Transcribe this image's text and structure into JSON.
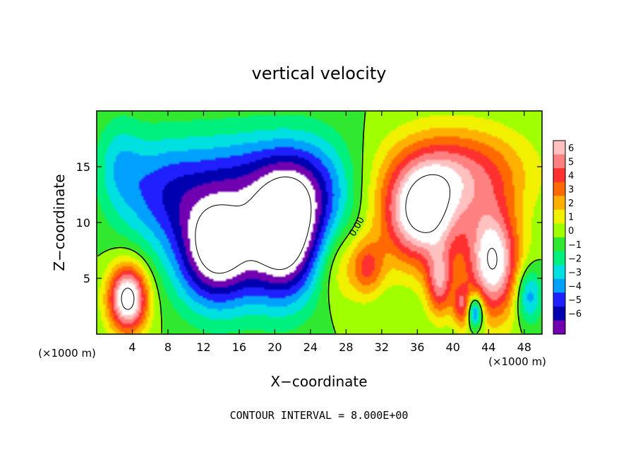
{
  "chart_data": {
    "type": "heatmap",
    "title": "vertical velocity",
    "xlabel": "X−coordinate",
    "ylabel": "Z−coordinate",
    "x_unit_label": "(×1000 m)",
    "y_unit_label": "(×1000 m)",
    "xlim": [
      0,
      50
    ],
    "ylim": [
      0,
      20
    ],
    "x_ticks": [
      4,
      8,
      12,
      16,
      20,
      24,
      28,
      32,
      36,
      40,
      44,
      48
    ],
    "x_tick_labels": [
      "4",
      "8",
      "12",
      "16",
      "20",
      "24",
      "28",
      "32",
      "36",
      "40",
      "44",
      "48"
    ],
    "y_ticks": [
      5,
      10,
      15
    ],
    "y_tick_labels": [
      "5",
      "10",
      "15"
    ],
    "colorbar": {
      "levels": [
        6,
        5,
        4,
        3,
        2,
        1,
        0,
        -1,
        -2,
        -3,
        -4,
        -5,
        -6
      ],
      "labels": [
        "6",
        "5",
        "4",
        "3",
        "2",
        "1",
        "0",
        "−1",
        "−2",
        "−3",
        "−4",
        "−5",
        "−6"
      ],
      "colors": [
        "#ffc0c0",
        "#ff8080",
        "#ff3030",
        "#ff6a00",
        "#ffb000",
        "#f0f000",
        "#a0ff00",
        "#30e830",
        "#00f080",
        "#00e0e0",
        "#00a0ff",
        "#2020ff",
        "#0000b0",
        "#7000b0"
      ]
    },
    "contour_label": "0.00",
    "footer": "CONTOUR INTERVAL = 8.000E+00",
    "features": [
      {
        "cx": 3.5,
        "cz": 3.2,
        "rx": 2.2,
        "rz": 3.0,
        "amp": 9
      },
      {
        "cx": 2.5,
        "cz": 15.5,
        "rx": 2.5,
        "rz": 4.0,
        "amp": -2
      },
      {
        "cx": 7.0,
        "cz": 12.5,
        "rx": 5.0,
        "rz": 5.0,
        "amp": -3.5
      },
      {
        "cx": 13.5,
        "cz": 7.5,
        "rx": 4.5,
        "rz": 5.0,
        "amp": -9
      },
      {
        "cx": 21.0,
        "cz": 8.5,
        "rx": 4.0,
        "rz": 5.5,
        "amp": -9
      },
      {
        "cx": 17.0,
        "cz": 14.0,
        "rx": 8.5,
        "rz": 4.5,
        "amp": -4
      },
      {
        "cx": 24.5,
        "cz": 12.5,
        "rx": 4.5,
        "rz": 5.0,
        "amp": -3
      },
      {
        "cx": 27.5,
        "cz": 6.0,
        "rx": 2.8,
        "rz": 3.5,
        "amp": 2
      },
      {
        "cx": 30.5,
        "cz": 6.0,
        "rx": 1.8,
        "rz": 2.5,
        "amp": 3.5
      },
      {
        "cx": 36.5,
        "cz": 10.5,
        "rx": 4.5,
        "rz": 4.5,
        "amp": 8
      },
      {
        "cx": 40.5,
        "cz": 14.5,
        "rx": 7.5,
        "rz": 4.0,
        "amp": 5
      },
      {
        "cx": 44.5,
        "cz": 6.5,
        "rx": 3.0,
        "rz": 5.0,
        "amp": 8
      },
      {
        "cx": 38.5,
        "cz": 4.5,
        "rx": 1.5,
        "rz": 3.0,
        "amp": 5
      },
      {
        "cx": 42.5,
        "cz": 2.0,
        "rx": 0.9,
        "rz": 1.5,
        "amp": -6
      },
      {
        "cx": 48.5,
        "cz": 3.5,
        "rx": 1.5,
        "rz": 2.5,
        "amp": -4
      },
      {
        "cx": 41.0,
        "cz": 2.5,
        "rx": 1.0,
        "rz": 2.0,
        "amp": 4
      }
    ]
  }
}
